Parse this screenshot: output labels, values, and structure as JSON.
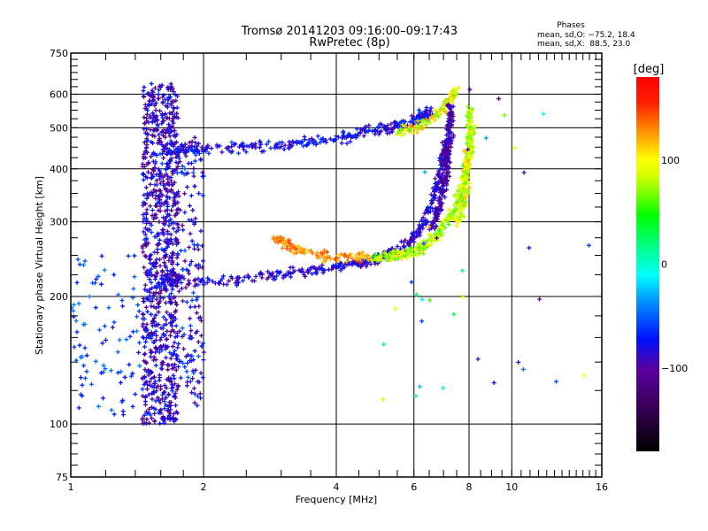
{
  "chart_data": {
    "type": "scatter",
    "title": "Tromsø 20141203 09:16:00–09:17:43",
    "subtitle": "RwPretec (8p)",
    "xlabel": "Frequency [MHz]",
    "ylabel": "Stationary phase Virtual Height [km]",
    "x_scale": "log",
    "y_scale": "log",
    "xlim": [
      1,
      16
    ],
    "ylim": [
      75,
      750
    ],
    "x_ticks": [
      1,
      2,
      4,
      6,
      8,
      10,
      16
    ],
    "x_tick_labels": [
      "1",
      "2",
      "4",
      "6",
      "8",
      "10",
      "16"
    ],
    "y_ticks": [
      75,
      100,
      200,
      300,
      400,
      500,
      600,
      750
    ],
    "y_tick_labels": [
      "75",
      "100",
      "200",
      "300",
      "400",
      "500",
      "600",
      "750"
    ],
    "grid": true,
    "x_grid": [
      2,
      4,
      6,
      8,
      10
    ],
    "y_grid": [
      100,
      200,
      300,
      400,
      500,
      600
    ],
    "legend": {
      "title": "Phases",
      "lines": [
        "mean, sd,O: −75.2, 18.4",
        "mean, sd,X:  88.5, 23.0"
      ],
      "position": "top-right"
    },
    "phase_stats": {
      "O": {
        "mean": -75.2,
        "sd": 18.4
      },
      "X": {
        "mean": 88.5,
        "sd": 23.0
      }
    },
    "colorbar": {
      "label": "[deg]",
      "range": [
        -180,
        180
      ],
      "ticks": [
        100,
        0,
        -100
      ],
      "tick_labels": [
        "100",
        "0",
        "−100"
      ]
    },
    "traces": [
      {
        "name": "spread-F column",
        "f": [
          1.45,
          1.75
        ],
        "h": [
          100,
          640
        ],
        "phase": [
          -120,
          -60
        ],
        "count": 900
      },
      {
        "name": "spread-F fringe",
        "f": [
          1.75,
          2.0
        ],
        "h": [
          110,
          480
        ],
        "phase": [
          -110,
          -50
        ],
        "count": 160
      },
      {
        "name": "low spread",
        "f": [
          1.0,
          1.45
        ],
        "h": [
          105,
          250
        ],
        "phase": [
          -80,
          -40
        ],
        "count": 90
      },
      {
        "name": "F2 O-trace upper",
        "f_path": [
          1.6,
          2.0,
          3.0,
          4.0,
          5.0,
          6.0,
          6.5
        ],
        "h_path": [
          445,
          445,
          455,
          470,
          495,
          520,
          545
        ],
        "phase": [
          -100,
          -55
        ],
        "count": 320
      },
      {
        "name": "F2 X-trace upper",
        "f_path": [
          5.5,
          6.2,
          6.8,
          7.2,
          7.5
        ],
        "h_path": [
          490,
          505,
          540,
          580,
          620
        ],
        "phase": [
          60,
          130
        ],
        "count": 110
      },
      {
        "name": "F1 O-trace lower",
        "f_path": [
          1.6,
          2.0,
          3.0,
          4.0,
          5.0,
          5.8,
          6.3,
          6.8,
          7.1
        ],
        "h_path": [
          220,
          215,
          225,
          235,
          245,
          265,
          300,
          370,
          470
        ],
        "phase": [
          -110,
          -65
        ],
        "count": 420
      },
      {
        "name": "O cusp vertical",
        "f_path": [
          6.6,
          6.9,
          7.1,
          7.2,
          7.25
        ],
        "h_path": [
          290,
          340,
          400,
          480,
          560
        ],
        "phase": [
          -120,
          -80
        ],
        "count": 220
      },
      {
        "name": "X-trace lower",
        "f_path": [
          4.8,
          5.5,
          6.2,
          6.8,
          7.4,
          7.8,
          8.0,
          8.1
        ],
        "h_path": [
          245,
          250,
          260,
          280,
          320,
          380,
          440,
          500
        ],
        "phase": [
          50,
          110
        ],
        "count": 380
      },
      {
        "name": "X cusp vertical",
        "f_path": [
          7.5,
          7.8,
          7.9,
          8.0,
          8.0
        ],
        "h_path": [
          300,
          340,
          400,
          460,
          560
        ],
        "phase": [
          60,
          120
        ],
        "count": 160
      },
      {
        "name": "Es orange arc",
        "f_path": [
          2.9,
          3.2,
          3.6,
          4.2,
          4.8
        ],
        "h_path": [
          275,
          258,
          250,
          247,
          248
        ],
        "phase": [
          110,
          150
        ],
        "count": 110
      },
      {
        "name": "sparse noise",
        "f": [
          5.0,
          15.0
        ],
        "h": [
          110,
          640
        ],
        "phase": [
          -130,
          140
        ],
        "count": 35
      }
    ]
  }
}
